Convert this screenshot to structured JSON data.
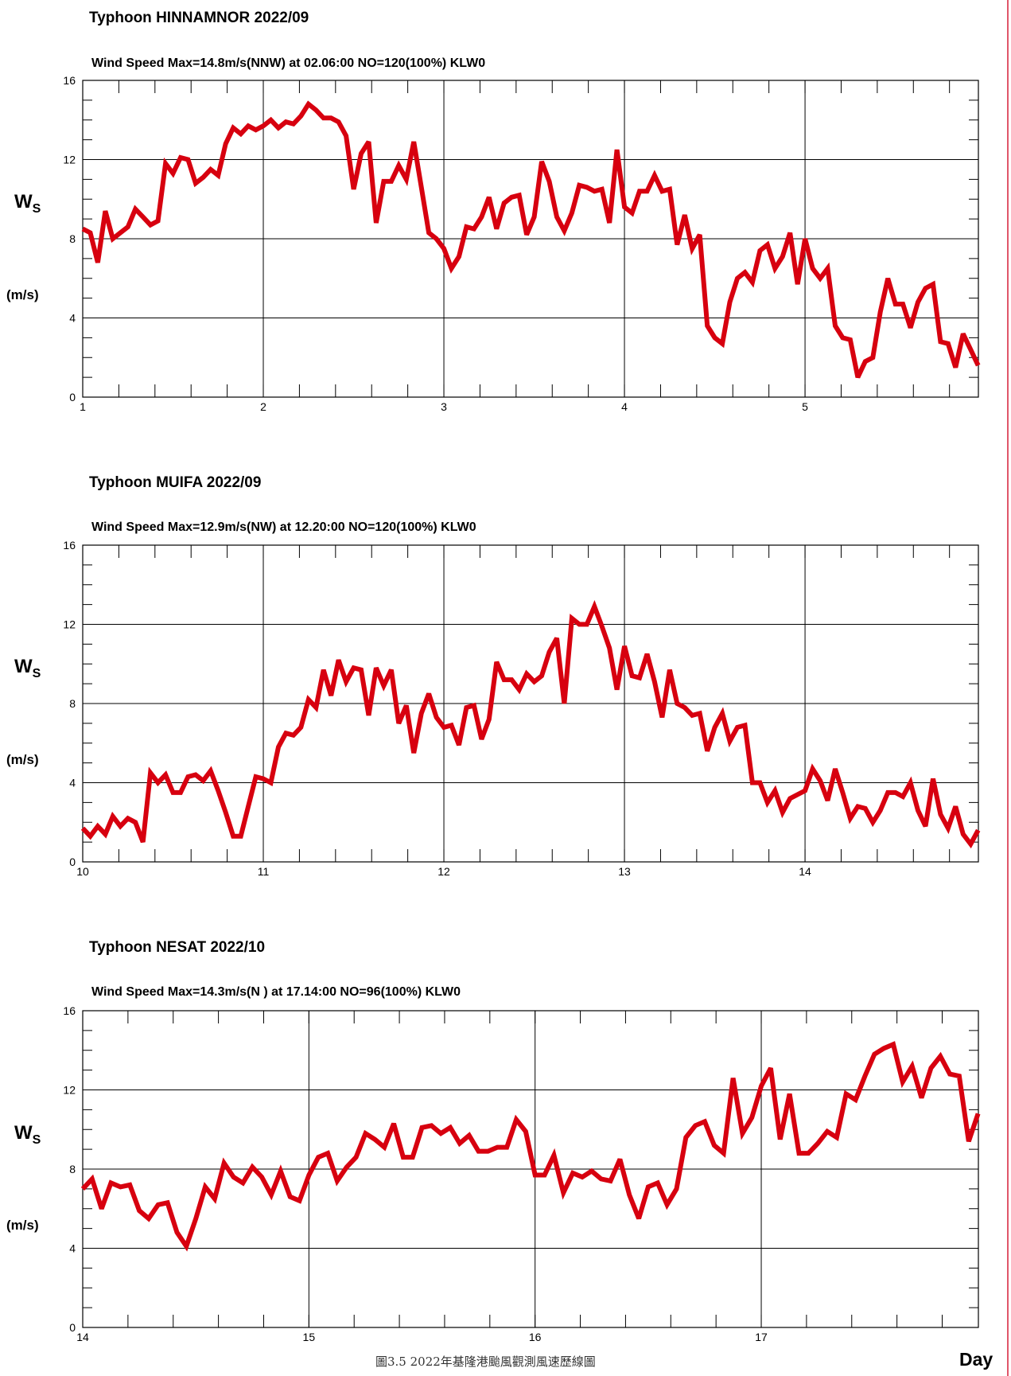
{
  "charts": [
    {
      "panel_title": "Typhoon HINNAMNOR 2022/09",
      "subtitle": "Wind Speed Max=14.8m/s(NNW) at 02.06:00 NO=120(100%) KLW0"
    },
    {
      "panel_title": "Typhoon MUIFA 2022/09",
      "subtitle": "Wind Speed Max=12.9m/s(NW) at 12.20:00 NO=120(100%) KLW0"
    },
    {
      "panel_title": "Typhoon NESAT 2022/10",
      "subtitle": "Wind Speed Max=14.3m/s(N ) at 17.14:00 NO=96(100%) KLW0"
    }
  ],
  "ylabel_main": "W",
  "ylabel_sub": "S",
  "yunit": "(m/s)",
  "xlabel": "Day",
  "caption": "圖3.5    2022年基隆港颱風觀測風速歷線圖",
  "line_color": "#d7000f",
  "chart_data": [
    {
      "type": "line",
      "title": "Wind Speed Max=14.8m/s(NNW) at 02.06:00 NO=120(100%) KLW0",
      "xlabel": "Day",
      "ylabel": "Ws (m/s)",
      "xlim": [
        1,
        5.96
      ],
      "ylim": [
        0,
        16
      ],
      "xticks": [
        1,
        2,
        3,
        4,
        5
      ],
      "yticks": [
        0,
        4,
        8,
        12,
        16
      ],
      "grid": true,
      "x_start": 1,
      "x_step": 0.04167,
      "values": [
        8.5,
        8.3,
        6.8,
        9.4,
        8.0,
        8.3,
        8.6,
        9.5,
        9.1,
        8.7,
        8.9,
        11.8,
        11.3,
        12.1,
        12.0,
        10.8,
        11.1,
        11.5,
        11.2,
        12.8,
        13.6,
        13.3,
        13.7,
        13.5,
        13.7,
        14.0,
        13.6,
        13.9,
        13.8,
        14.2,
        14.8,
        14.5,
        14.1,
        14.1,
        13.9,
        13.2,
        10.5,
        12.3,
        12.9,
        8.8,
        10.9,
        10.9,
        11.7,
        11.0,
        12.9,
        10.6,
        8.3,
        8.0,
        7.5,
        6.5,
        7.1,
        8.6,
        8.5,
        9.1,
        10.1,
        8.5,
        9.8,
        10.1,
        10.2,
        8.2,
        9.1,
        11.9,
        10.9,
        9.1,
        8.4,
        9.3,
        10.7,
        10.6,
        10.4,
        10.5,
        8.8,
        12.5,
        9.6,
        9.3,
        10.4,
        10.4,
        11.2,
        10.4,
        10.5,
        7.7,
        9.2,
        7.5,
        8.2,
        3.6,
        3.0,
        2.7,
        4.8,
        6.0,
        6.3,
        5.8,
        7.4,
        7.7,
        6.5,
        7.1,
        8.3,
        5.7,
        8.0,
        6.5,
        6.0,
        6.5,
        3.6,
        3.0,
        2.9,
        1.0,
        1.8,
        2.0,
        4.3,
        6.0,
        4.7,
        4.7,
        3.5,
        4.8,
        5.5,
        5.7,
        2.8,
        2.7,
        1.5,
        3.2,
        2.4,
        1.6
      ]
    },
    {
      "type": "line",
      "title": "Wind Speed Max=12.9m/s(NW) at 12.20:00 NO=120(100%) KLW0",
      "xlabel": "Day",
      "ylabel": "Ws (m/s)",
      "xlim": [
        10,
        14.96
      ],
      "ylim": [
        0,
        16
      ],
      "xticks": [
        10,
        11,
        12,
        13,
        14
      ],
      "yticks": [
        0,
        4,
        8,
        12,
        16
      ],
      "grid": true,
      "x_start": 10,
      "x_step": 0.04167,
      "values": [
        1.7,
        1.3,
        1.8,
        1.4,
        2.3,
        1.8,
        2.2,
        2.0,
        1.0,
        4.5,
        4.0,
        4.4,
        3.5,
        3.5,
        4.3,
        4.4,
        4.1,
        4.6,
        3.6,
        2.5,
        1.3,
        1.3,
        2.8,
        4.3,
        4.2,
        4.0,
        5.8,
        6.5,
        6.4,
        6.8,
        8.2,
        7.8,
        9.7,
        8.4,
        10.2,
        9.1,
        9.8,
        9.7,
        7.4,
        9.8,
        8.9,
        9.7,
        7.0,
        7.9,
        5.5,
        7.5,
        8.5,
        7.3,
        6.8,
        6.9,
        5.9,
        7.8,
        7.9,
        6.2,
        7.2,
        10.1,
        9.2,
        9.2,
        8.7,
        9.5,
        9.1,
        9.4,
        10.6,
        11.3,
        8.0,
        12.3,
        12.0,
        12.0,
        12.9,
        11.9,
        10.8,
        8.7,
        10.9,
        9.4,
        9.3,
        10.5,
        9.1,
        7.3,
        9.7,
        8.0,
        7.8,
        7.4,
        7.5,
        5.6,
        6.8,
        7.5,
        6.1,
        6.8,
        6.9,
        4.0,
        4.0,
        3.0,
        3.6,
        2.5,
        3.2,
        3.4,
        3.6,
        4.7,
        4.1,
        3.1,
        4.7,
        3.5,
        2.2,
        2.8,
        2.7,
        2.0,
        2.6,
        3.5,
        3.5,
        3.3,
        4.0,
        2.6,
        1.8,
        4.2,
        2.4,
        1.7,
        2.8,
        1.4,
        0.9,
        1.6
      ]
    },
    {
      "type": "line",
      "title": "Wind Speed Max=14.3m/s(N ) at 17.14:00 NO=96(100%) KLW0",
      "xlabel": "Day",
      "ylabel": "Ws (m/s)",
      "xlim": [
        14,
        17.96
      ],
      "ylim": [
        0,
        16
      ],
      "xticks": [
        14,
        15,
        16,
        17
      ],
      "yticks": [
        0,
        4,
        8,
        12,
        16
      ],
      "grid": true,
      "x_start": 14,
      "x_step": 0.04167,
      "values": [
        7.0,
        7.5,
        6.0,
        7.3,
        7.1,
        7.2,
        5.9,
        5.5,
        6.2,
        6.3,
        4.8,
        4.1,
        5.5,
        7.1,
        6.5,
        8.3,
        7.6,
        7.3,
        8.1,
        7.6,
        6.7,
        7.9,
        6.6,
        6.4,
        7.7,
        8.6,
        8.8,
        7.4,
        8.1,
        8.6,
        9.8,
        9.5,
        9.1,
        10.3,
        8.6,
        8.6,
        10.1,
        10.2,
        9.8,
        10.1,
        9.3,
        9.7,
        8.9,
        8.9,
        9.1,
        9.1,
        10.5,
        9.9,
        7.7,
        7.7,
        8.7,
        6.8,
        7.8,
        7.6,
        7.9,
        7.5,
        7.4,
        8.5,
        6.7,
        5.5,
        7.1,
        7.3,
        6.2,
        7.0,
        9.6,
        10.2,
        10.4,
        9.2,
        8.8,
        12.6,
        9.8,
        10.6,
        12.2,
        13.1,
        9.5,
        11.8,
        8.8,
        8.8,
        9.3,
        9.9,
        9.6,
        11.8,
        11.5,
        12.7,
        13.8,
        14.1,
        14.3,
        12.4,
        13.2,
        11.6,
        13.1,
        13.7,
        12.8,
        12.7,
        9.4,
        10.8
      ]
    }
  ]
}
